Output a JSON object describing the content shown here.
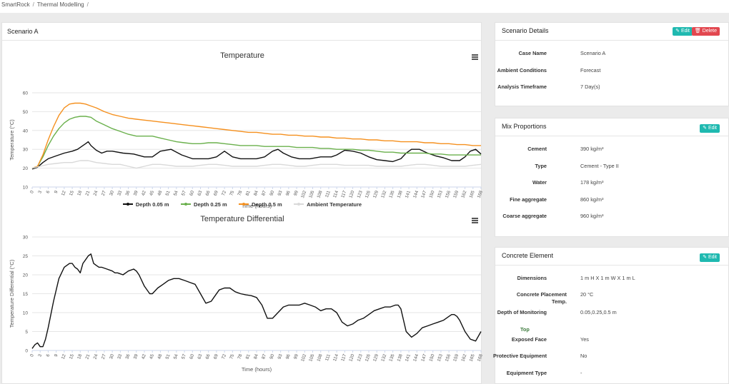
{
  "breadcrumb": {
    "items": [
      "SmartRock",
      "Thermal Modelling"
    ]
  },
  "main": {
    "title": "Scenario A"
  },
  "colors": {
    "depth_005": "#111111",
    "depth_025": "#6ab04c",
    "depth_05": "#f5901e",
    "ambient": "#d9d9d9",
    "edit": "#1fb9b0",
    "delete": "#e2474f"
  },
  "chart_data": [
    {
      "type": "line",
      "title": "Temperature",
      "xlabel": "Time (hours)",
      "ylabel": "Temperature (°C)",
      "xlim": [
        0,
        168
      ],
      "ylim": [
        10,
        60
      ],
      "yticks": [
        10,
        20,
        30,
        40,
        50,
        60
      ],
      "xticks": [
        0,
        3,
        6,
        9,
        12,
        15,
        18,
        21,
        24,
        27,
        30,
        33,
        36,
        39,
        42,
        45,
        48,
        51,
        54,
        57,
        60,
        63,
        66,
        69,
        72,
        75,
        78,
        81,
        84,
        87,
        90,
        93,
        96,
        99,
        102,
        105,
        108,
        111,
        114,
        117,
        120,
        123,
        126,
        129,
        132,
        135,
        138,
        141,
        144,
        147,
        150,
        153,
        156,
        159,
        162,
        165,
        168
      ],
      "legend": "bottom",
      "series": [
        {
          "name": "Depth 0.05 m",
          "color": "#111111",
          "x": [
            0,
            2,
            4,
            6,
            9,
            12,
            15,
            17,
            19,
            20,
            21,
            22,
            24,
            26,
            28,
            30,
            34,
            38,
            42,
            45,
            48,
            52,
            56,
            60,
            63,
            66,
            69,
            72,
            75,
            78,
            81,
            84,
            87,
            90,
            92,
            94,
            97,
            100,
            104,
            108,
            112,
            114,
            117,
            120,
            123,
            126,
            129,
            132,
            135,
            138,
            140,
            142,
            145,
            148,
            151,
            154,
            157,
            160,
            162,
            164,
            166,
            168
          ],
          "values": [
            19.5,
            20.5,
            23,
            25,
            26.5,
            28,
            29,
            30,
            32,
            33,
            34,
            32,
            29.5,
            28,
            29,
            29,
            28,
            27.5,
            26,
            26,
            29,
            30,
            27,
            25,
            25,
            25,
            26,
            29,
            26,
            25,
            25,
            25,
            26,
            29,
            30,
            28,
            26,
            25,
            25,
            26,
            26,
            27,
            29.5,
            29,
            28,
            26,
            24.5,
            24,
            23.5,
            25,
            28,
            30,
            30,
            28,
            26.5,
            25.5,
            24,
            24,
            26,
            29,
            30,
            27.5
          ]
        },
        {
          "name": "Depth 0.25 m",
          "color": "#6ab04c",
          "x": [
            0,
            2,
            4,
            6,
            8,
            10,
            12,
            14,
            16,
            18,
            20,
            22,
            24,
            27,
            30,
            33,
            36,
            39,
            42,
            45,
            48,
            51,
            54,
            57,
            60,
            63,
            66,
            69,
            72,
            75,
            78,
            81,
            84,
            87,
            90,
            93,
            96,
            99,
            102,
            105,
            108,
            111,
            114,
            117,
            120,
            123,
            126,
            129,
            132,
            135,
            138,
            141,
            144,
            147,
            150,
            153,
            156,
            159,
            162,
            165,
            168
          ],
          "values": [
            20,
            21,
            26,
            32,
            37,
            41,
            44,
            46,
            47,
            47.5,
            47.5,
            47,
            45,
            43,
            41,
            39.5,
            38,
            37,
            37,
            37,
            36,
            35,
            34,
            33.5,
            33,
            33,
            33.5,
            33.5,
            33,
            32.5,
            32,
            32,
            32,
            31.5,
            31.5,
            31.5,
            31.5,
            31,
            31,
            31,
            30.5,
            30.5,
            30,
            30,
            30,
            29.5,
            29.5,
            29,
            28.5,
            28.5,
            28,
            28,
            28,
            28,
            27.5,
            27.5,
            27,
            27,
            27,
            27,
            27
          ]
        },
        {
          "name": "Depth 0.5 m",
          "color": "#f5901e",
          "x": [
            0,
            2,
            4,
            6,
            8,
            10,
            12,
            14,
            16,
            18,
            20,
            22,
            24,
            27,
            30,
            33,
            36,
            39,
            42,
            45,
            48,
            51,
            54,
            57,
            60,
            63,
            66,
            69,
            72,
            75,
            78,
            81,
            84,
            87,
            90,
            93,
            96,
            99,
            102,
            105,
            108,
            111,
            114,
            117,
            120,
            123,
            126,
            129,
            132,
            135,
            138,
            141,
            144,
            147,
            150,
            153,
            156,
            159,
            162,
            165,
            168
          ],
          "values": [
            20,
            21,
            27,
            35,
            42,
            48,
            52,
            54,
            54.5,
            54.5,
            54,
            53,
            52,
            50,
            48.5,
            47.5,
            46.5,
            46,
            45.5,
            45,
            44.5,
            44,
            43.5,
            43,
            42.5,
            42,
            41.5,
            41,
            40.5,
            40,
            39.5,
            39,
            39,
            38.5,
            38,
            38,
            37.5,
            37.5,
            37,
            37,
            36.5,
            36.5,
            36,
            36,
            35.5,
            35.5,
            35,
            35,
            34.5,
            34.5,
            34,
            34,
            34,
            33.5,
            33.5,
            33,
            33,
            32.5,
            32.5,
            32,
            32
          ]
        },
        {
          "name": "Ambient Temperature",
          "color": "#d9d9d9",
          "x": [
            0,
            3,
            6,
            9,
            12,
            15,
            18,
            21,
            24,
            27,
            30,
            33,
            36,
            39,
            42,
            45,
            48,
            51,
            54,
            57,
            60,
            63,
            66,
            69,
            72,
            75,
            78,
            81,
            84,
            87,
            90,
            93,
            96,
            99,
            102,
            105,
            108,
            111,
            114,
            117,
            120,
            123,
            126,
            129,
            132,
            135,
            138,
            141,
            144,
            147,
            150,
            153,
            156,
            159,
            162,
            165,
            168
          ],
          "values": [
            20,
            21,
            22,
            22.5,
            23,
            23,
            24,
            24,
            23,
            22.5,
            22,
            22,
            21,
            20,
            21,
            22,
            22,
            21.5,
            21,
            21,
            21,
            21.5,
            22,
            22,
            21.5,
            21,
            21,
            21,
            21,
            21.5,
            22,
            22,
            21.5,
            21,
            21,
            21.5,
            22,
            22,
            22,
            21.5,
            21.5,
            21.5,
            21.5,
            21,
            21,
            21,
            21,
            21.5,
            22,
            22,
            21.5,
            21,
            21,
            21,
            21,
            21.5,
            22
          ]
        }
      ]
    },
    {
      "type": "line",
      "title": "Temperature Differential",
      "xlabel": "Time (hours)",
      "ylabel": "Temperature Differential (°C)",
      "xlim": [
        0,
        168
      ],
      "ylim": [
        0,
        30
      ],
      "yticks": [
        0,
        5,
        10,
        15,
        20,
        25,
        30
      ],
      "xticks": [
        0,
        3,
        6,
        9,
        12,
        15,
        18,
        21,
        24,
        27,
        30,
        33,
        36,
        39,
        42,
        45,
        48,
        51,
        54,
        57,
        60,
        63,
        66,
        69,
        72,
        75,
        78,
        81,
        84,
        87,
        90,
        93,
        96,
        99,
        102,
        105,
        108,
        111,
        114,
        117,
        120,
        123,
        126,
        129,
        132,
        135,
        138,
        141,
        144,
        147,
        150,
        153,
        156,
        159,
        162,
        165,
        168
      ],
      "series": [
        {
          "name": "",
          "color": "#111111",
          "x": [
            0,
            1,
            2,
            3,
            4,
            5,
            6,
            8,
            10,
            12,
            14,
            15,
            16,
            17,
            18,
            19,
            20,
            21,
            22,
            23,
            24,
            25,
            26,
            28,
            30,
            31,
            32,
            34,
            36,
            38,
            39,
            40,
            42,
            44,
            45,
            47,
            49,
            51,
            53,
            55,
            57,
            59,
            61,
            63,
            65,
            67,
            68,
            70,
            72,
            74,
            76,
            78,
            80,
            82,
            84,
            86,
            88,
            90,
            92,
            94,
            96,
            98,
            100,
            102,
            104,
            106,
            108,
            110,
            112,
            114,
            116,
            118,
            120,
            122,
            124,
            126,
            128,
            130,
            132,
            134,
            136,
            137,
            138,
            139,
            140,
            142,
            144,
            146,
            148,
            150,
            152,
            154,
            155,
            156,
            157,
            158,
            159,
            160,
            162,
            164,
            166,
            168
          ],
          "values": [
            0.5,
            1.5,
            2,
            1,
            1,
            3,
            6,
            13,
            19,
            22,
            23,
            23,
            22,
            21.5,
            20.5,
            23,
            24,
            25,
            25.5,
            23,
            22.5,
            22,
            22,
            21.5,
            21,
            20.5,
            20.5,
            20,
            21,
            21.5,
            21,
            20,
            17,
            15,
            15,
            16.5,
            17.5,
            18.5,
            19,
            19,
            18.5,
            18,
            17.5,
            15,
            12.5,
            13,
            14,
            16,
            16.5,
            16.5,
            15.5,
            15,
            14.7,
            14.5,
            14,
            12,
            8.5,
            8.5,
            10,
            11.5,
            12,
            12,
            12,
            12.5,
            12,
            11.5,
            10.5,
            11,
            11,
            10,
            7.5,
            6.5,
            7,
            8,
            8.5,
            9.5,
            10.5,
            11,
            11.5,
            11.5,
            12,
            12,
            11,
            8,
            5,
            3.5,
            4.5,
            6,
            6.5,
            7,
            7.5,
            8,
            8.5,
            9,
            9.5,
            9.5,
            9,
            8,
            5,
            3,
            2.5,
            5
          ]
        }
      ]
    }
  ],
  "legend": [
    {
      "label": "Depth 0.05 m",
      "color": "#111111"
    },
    {
      "label": "Depth 0.25 m",
      "color": "#6ab04c"
    },
    {
      "label": "Depth 0.5 m",
      "color": "#f5901e"
    },
    {
      "label": "Ambient Temperature",
      "color": "#d9d9d9"
    }
  ],
  "scenario_details": {
    "title": "Scenario Details",
    "edit_label": "Edit",
    "delete_label": "Delete",
    "rows": [
      {
        "label": "Case Name",
        "value": "Scenario A"
      },
      {
        "label": "Ambient Conditions",
        "value": "Forecast"
      },
      {
        "label": "Analysis Timeframe",
        "value": "7 Day(s)"
      }
    ]
  },
  "mix_proportions": {
    "title": "Mix Proportions",
    "edit_label": "Edit",
    "rows": [
      {
        "label": "Cement",
        "value": "390 kg/m³"
      },
      {
        "label": "Type",
        "value": "Cement - Type II"
      },
      {
        "label": "Water",
        "value": "178 kg/m³"
      },
      {
        "label": "Fine aggregate",
        "value": "860 kg/m³"
      },
      {
        "label": "Coarse aggregate",
        "value": "960 kg/m³"
      }
    ]
  },
  "concrete_element": {
    "title": "Concrete Element",
    "edit_label": "Edit",
    "rows": [
      {
        "label": "Dimensions",
        "value": "1 m H X 1 m W X 1 m L"
      },
      {
        "label": "Concrete Placement Temp.",
        "value": "20 °C"
      },
      {
        "label": "Depth of Monitoring",
        "value": "0.05,0.25,0.5 m"
      }
    ],
    "section_label": "Top",
    "top_rows": [
      {
        "label": "Exposed Face",
        "value": "Yes"
      },
      {
        "label": "Protective Equipment",
        "value": "No"
      },
      {
        "label": "Equipment Type",
        "value": "-"
      }
    ]
  }
}
